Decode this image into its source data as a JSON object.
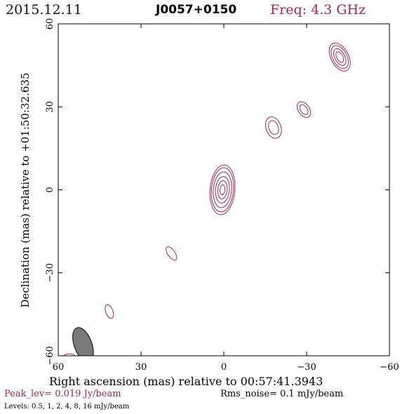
{
  "header": {
    "date": "2015.12.11",
    "source": "J0057+0150",
    "freq": "Freq: 4.3 GHz"
  },
  "colors": {
    "contour": "#a0284f",
    "beam_fill": "#7a7a7a",
    "axes": "#000000",
    "peak_text": "#a0284f"
  },
  "chart_data": {
    "type": "contour",
    "xlabel": "Right ascension (mas) relative to 00:57:41.3943",
    "ylabel": "Declination (mas) relative to +01:50:32.635",
    "xlim": [
      60,
      -60
    ],
    "ylim": [
      -60,
      60
    ],
    "xticks": [
      60,
      30,
      0,
      -30,
      -60
    ],
    "yticks": [
      -60,
      -30,
      0,
      30,
      60
    ],
    "xtick_labels": [
      "60",
      "30",
      "0",
      "−30",
      "−60"
    ],
    "ytick_labels": [
      "−60",
      "−30",
      "0",
      "30",
      "60"
    ],
    "peak_label": "Peak_lev=  0.019 Jy/beam",
    "rms_label": "Rms_noise=   0.1 mJy/beam",
    "levels_label": "Levels: 0.5,    1,    2,    4,    8,   16 mJy/beam",
    "levels_mJy": [
      0.5,
      1,
      2,
      4,
      8,
      16
    ],
    "beam": {
      "x": 51,
      "y": -56,
      "major": 6.5,
      "minor": 3.2,
      "pa_deg": -20
    },
    "components": [
      {
        "id": "core",
        "x": 0.5,
        "y": 0,
        "angle": 5,
        "contours": [
          [
            4.5,
            9
          ],
          [
            4.0,
            8.0
          ],
          [
            3.3,
            6.5
          ],
          [
            2.5,
            4.8
          ],
          [
            1.7,
            3.3
          ],
          [
            0.9,
            1.8
          ]
        ]
      },
      {
        "id": "knot-ne1",
        "x": -42,
        "y": 48,
        "angle": -28,
        "contours": [
          [
            3.2,
            5.5
          ],
          [
            2.6,
            4.5
          ],
          [
            1.8,
            3.3
          ],
          [
            1.1,
            2.1
          ]
        ]
      },
      {
        "id": "knot-ne2",
        "x": -29,
        "y": 29,
        "angle": -35,
        "contours": [
          [
            2.0,
            3.2
          ],
          [
            1.2,
            2.0
          ]
        ]
      },
      {
        "id": "knot-ne3",
        "x": -18,
        "y": 22.5,
        "angle": -20,
        "contours": [
          [
            2.7,
            4.0
          ],
          [
            1.7,
            2.6
          ]
        ]
      },
      {
        "id": "knot-sw1",
        "x": 19,
        "y": -23,
        "angle": -35,
        "contours": [
          [
            1.3,
            2.8
          ]
        ]
      },
      {
        "id": "knot-sw2",
        "x": 41.5,
        "y": -44,
        "angle": -20,
        "contours": [
          [
            1.3,
            2.6
          ]
        ]
      },
      {
        "id": "knot-sw3",
        "x": 56,
        "y": -60.3,
        "angle": 0,
        "contours": [
          [
            2.2,
            1.0
          ]
        ]
      }
    ]
  }
}
